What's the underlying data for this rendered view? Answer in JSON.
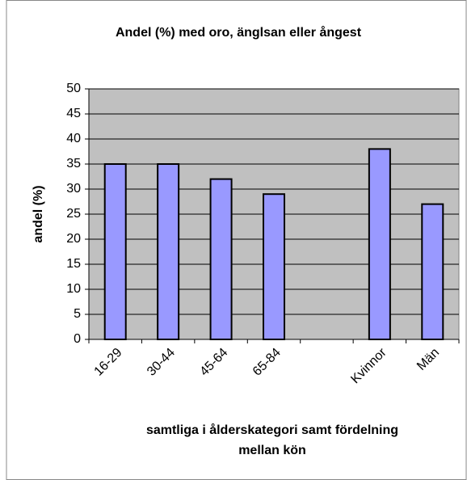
{
  "chart_data": {
    "type": "bar",
    "title": "Andel (%) med oro, änglsan eller ångest",
    "categories": [
      "16-29",
      "30-44",
      "45-64",
      "65-84",
      null,
      "Kvinnor",
      "Män"
    ],
    "values": [
      35,
      35,
      32,
      29,
      null,
      38,
      27
    ],
    "color": "#9999ff",
    "ylabel": "andel (%)",
    "xlabel": [
      "samtliga i ålderskategori samt fördelning",
      "mellan kön"
    ],
    "ylim": [
      0,
      50
    ],
    "yticks": [
      0,
      5,
      10,
      15,
      20,
      25,
      30,
      35,
      40,
      45,
      50
    ],
    "grid": true
  }
}
